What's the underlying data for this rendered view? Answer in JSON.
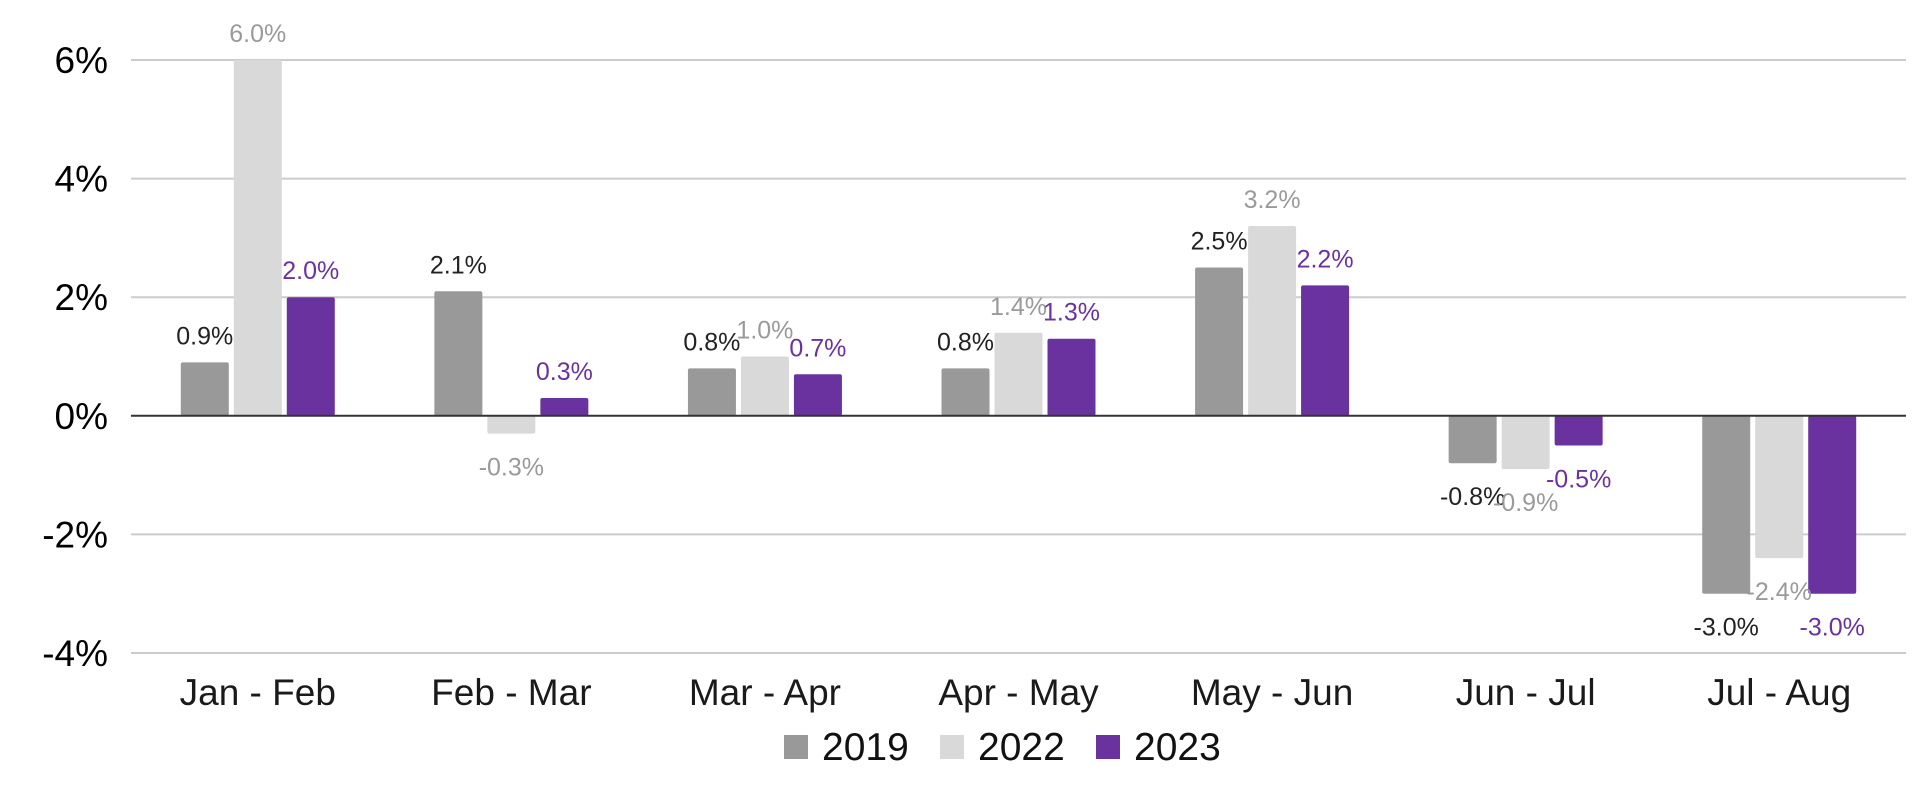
{
  "chart_data": {
    "type": "bar",
    "categories": [
      "Jan - Feb",
      "Feb - Mar",
      "Mar - Apr",
      "Apr - May",
      "May - Jun",
      "Jun - Jul",
      "Jul - Aug"
    ],
    "series": [
      {
        "name": "2019",
        "color": "#999999",
        "label_color": "#222222",
        "values": [
          0.9,
          2.1,
          0.8,
          0.8,
          2.5,
          -0.8,
          -3.0
        ],
        "labels": [
          "0.9%",
          "2.1%",
          "0.8%",
          "0.8%",
          "2.5%",
          "-0.8%",
          "-3.0%"
        ]
      },
      {
        "name": "2022",
        "color": "#d9d9d9",
        "label_color": "#9a9a9a",
        "values": [
          6.0,
          -0.3,
          1.0,
          1.4,
          3.2,
          -0.9,
          -2.4
        ],
        "labels": [
          "6.0%",
          "-0.3%",
          "1.0%",
          "1.4%",
          "3.2%",
          "-0.9%",
          "-2.4%"
        ]
      },
      {
        "name": "2023",
        "color": "#6a329f",
        "label_color": "#6a329f",
        "values": [
          2.0,
          0.3,
          0.7,
          1.3,
          2.2,
          -0.5,
          -3.0
        ],
        "labels": [
          "2.0%",
          "0.3%",
          "0.7%",
          "1.3%",
          "2.2%",
          "-0.5%",
          "-3.0%"
        ]
      }
    ],
    "yticks": [
      6,
      4,
      2,
      0,
      -2,
      -4
    ],
    "ytick_labels": [
      "6%",
      "4%",
      "2%",
      "0%",
      "-2%",
      "-4%"
    ],
    "ylim": [
      -4,
      6
    ],
    "grid": true,
    "legend_position": "bottom"
  }
}
